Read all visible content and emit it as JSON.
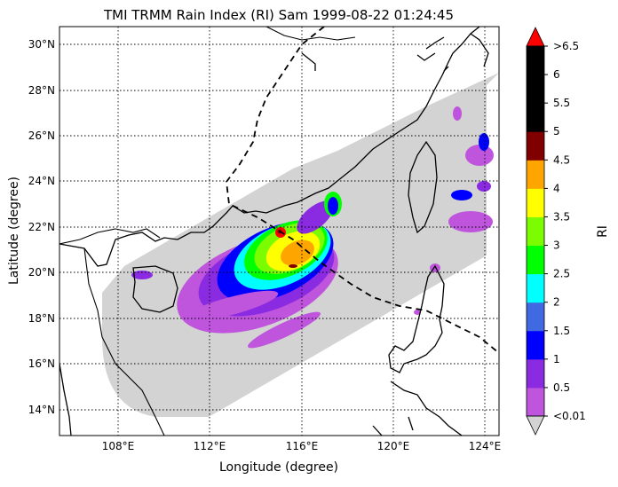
{
  "title": "TMI TRMM Rain Index (RI) Sam 1999-08-22 01:24:45",
  "xlabel": "Longitude (degree)",
  "ylabel": "Latitude (degree)",
  "x_ticks": [
    "108°E",
    "112°E",
    "116°E",
    "120°E",
    "124°E"
  ],
  "y_ticks": [
    "14°N",
    "16°N",
    "18°N",
    "20°N",
    "22°N",
    "24°N",
    "26°N",
    "28°N",
    "30°N"
  ],
  "extent": {
    "lon": [
      105.5,
      124.5
    ],
    "lat": [
      12.8,
      30.8
    ]
  },
  "colorbar": {
    "label": "RI",
    "ticks": [
      "<0.01",
      "0.5",
      "1",
      "1.5",
      "2",
      "2.5",
      "3",
      "3.5",
      "4",
      "4.5",
      "5",
      "5.5",
      "6",
      ">6.5"
    ],
    "colors": [
      "#bf55dd",
      "#8a2be2",
      "#0000ff",
      "#4169e1",
      "#00ffff",
      "#00ff00",
      "#7cfc00",
      "#ffff00",
      "#ffa500",
      "#800000",
      "#000000",
      "#000000",
      "#000000"
    ],
    "under_color": "#d3d3d3",
    "over_color": "#ff0000"
  },
  "swath_color": "#d3d3d3",
  "track_style": "dashed",
  "gridlines": "dotted"
}
